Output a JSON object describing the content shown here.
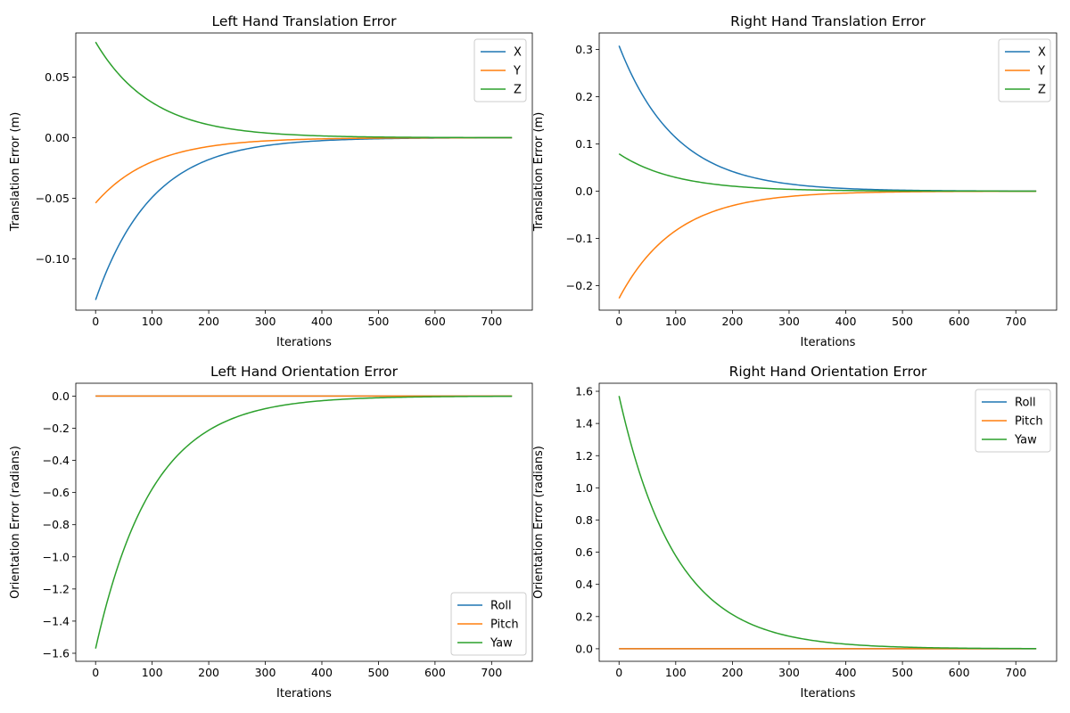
{
  "chart_data": [
    {
      "type": "line",
      "title": "Left Hand Translation Error",
      "xlabel": "Iterations",
      "ylabel": "Translation Error (m)",
      "xlim": [
        -35,
        772
      ],
      "ylim": [
        -0.1425,
        0.0865
      ],
      "xticks": [
        0,
        100,
        200,
        300,
        400,
        500,
        600,
        700
      ],
      "xtick_labels": [
        "0",
        "100",
        "200",
        "300",
        "400",
        "500",
        "600",
        "700"
      ],
      "yticks": [
        -0.1,
        -0.05,
        0.0,
        0.05
      ],
      "ytick_labels": [
        "−0.10",
        "−0.05",
        "0.00",
        "0.05"
      ],
      "legend": "upper right",
      "grid": false,
      "series": [
        {
          "name": "X",
          "color": "#1f77b4",
          "initial": -0.134,
          "rate": 0.01,
          "x_end": 736
        },
        {
          "name": "Y",
          "color": "#ff7f0e",
          "initial": -0.054,
          "rate": 0.01,
          "x_end": 736
        },
        {
          "name": "Z",
          "color": "#2ca02c",
          "initial": 0.079,
          "rate": 0.01,
          "x_end": 736
        }
      ]
    },
    {
      "type": "line",
      "title": "Right Hand Translation Error",
      "xlabel": "Iterations",
      "ylabel": "Translation Error (m)",
      "xlim": [
        -35,
        772
      ],
      "ylim": [
        -0.252,
        0.335
      ],
      "xticks": [
        0,
        100,
        200,
        300,
        400,
        500,
        600,
        700
      ],
      "xtick_labels": [
        "0",
        "100",
        "200",
        "300",
        "400",
        "500",
        "600",
        "700"
      ],
      "yticks": [
        -0.2,
        -0.1,
        0.0,
        0.1,
        0.2,
        0.3
      ],
      "ytick_labels": [
        "−0.2",
        "−0.1",
        "0.0",
        "0.1",
        "0.2",
        "0.3"
      ],
      "legend": "upper right",
      "grid": false,
      "series": [
        {
          "name": "X",
          "color": "#1f77b4",
          "initial": 0.308,
          "rate": 0.01,
          "x_end": 736
        },
        {
          "name": "Y",
          "color": "#ff7f0e",
          "initial": -0.227,
          "rate": 0.01,
          "x_end": 736
        },
        {
          "name": "Z",
          "color": "#2ca02c",
          "initial": 0.079,
          "rate": 0.01,
          "x_end": 736
        }
      ]
    },
    {
      "type": "line",
      "title": "Left Hand Orientation Error",
      "xlabel": "Iterations",
      "ylabel": "Orientation Error (radians)",
      "xlim": [
        -35,
        772
      ],
      "ylim": [
        -1.65,
        0.08
      ],
      "xticks": [
        0,
        100,
        200,
        300,
        400,
        500,
        600,
        700
      ],
      "xtick_labels": [
        "0",
        "100",
        "200",
        "300",
        "400",
        "500",
        "600",
        "700"
      ],
      "yticks": [
        0.0,
        -0.2,
        -0.4,
        -0.6,
        -0.8,
        -1.0,
        -1.2,
        -1.4,
        -1.6
      ],
      "ytick_labels": [
        "0.0",
        "−0.2",
        "−0.4",
        "−0.6",
        "−0.8",
        "−1.0",
        "−1.2",
        "−1.4",
        "−1.6"
      ],
      "legend": "lower right",
      "grid": false,
      "series": [
        {
          "name": "Roll",
          "color": "#1f77b4",
          "initial": 0.0,
          "rate": 0.01,
          "x_end": 736
        },
        {
          "name": "Pitch",
          "color": "#ff7f0e",
          "initial": 0.0,
          "rate": 0.01,
          "x_end": 736
        },
        {
          "name": "Yaw",
          "color": "#2ca02c",
          "initial": -1.5708,
          "rate": 0.01,
          "x_end": 736
        }
      ]
    },
    {
      "type": "line",
      "title": "Right Hand Orientation Error",
      "xlabel": "Iterations",
      "ylabel": "Orientation Error (radians)",
      "xlim": [
        -35,
        772
      ],
      "ylim": [
        -0.078,
        1.65
      ],
      "xticks": [
        0,
        100,
        200,
        300,
        400,
        500,
        600,
        700
      ],
      "xtick_labels": [
        "0",
        "100",
        "200",
        "300",
        "400",
        "500",
        "600",
        "700"
      ],
      "yticks": [
        0.0,
        0.2,
        0.4,
        0.6,
        0.8,
        1.0,
        1.2,
        1.4,
        1.6
      ],
      "ytick_labels": [
        "0.0",
        "0.2",
        "0.4",
        "0.6",
        "0.8",
        "1.0",
        "1.2",
        "1.4",
        "1.6"
      ],
      "legend": "upper right",
      "grid": false,
      "series": [
        {
          "name": "Roll",
          "color": "#1f77b4",
          "initial": 0.0,
          "rate": 0.01,
          "x_end": 736
        },
        {
          "name": "Pitch",
          "color": "#ff7f0e",
          "initial": 0.0,
          "rate": 0.01,
          "x_end": 736
        },
        {
          "name": "Yaw",
          "color": "#2ca02c",
          "initial": 1.5708,
          "rate": 0.01,
          "x_end": 736
        }
      ]
    }
  ]
}
